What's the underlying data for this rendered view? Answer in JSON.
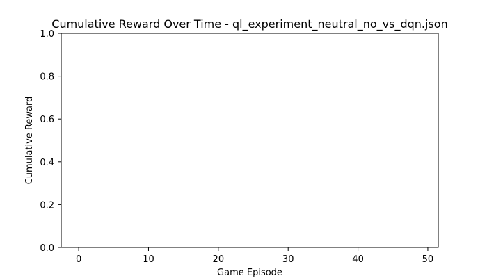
{
  "chart_data": {
    "type": "line",
    "title": "Cumulative Reward Over Time - ql_experiment_neutral_no_vs_dqn.json",
    "xlabel": "Game Episode",
    "ylabel": "Cumulative Reward",
    "xlim": [
      -2.5,
      51.5
    ],
    "ylim": [
      0,
      1
    ],
    "xticks": [
      0,
      10,
      20,
      30,
      40,
      50
    ],
    "xtick_labels": [
      "0",
      "10",
      "20",
      "30",
      "40",
      "50"
    ],
    "yticks": [
      0,
      0.2,
      0.4,
      0.6,
      0.8,
      1.0
    ],
    "ytick_labels": [
      "0.0",
      "0.2",
      "0.4",
      "0.6",
      "0.8",
      "1.0"
    ],
    "grid": false,
    "series": []
  }
}
